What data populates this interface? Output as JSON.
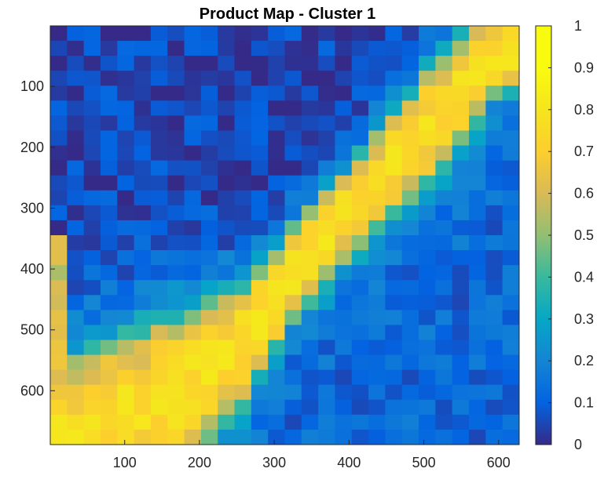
{
  "chart_data": {
    "type": "heatmap",
    "title": "Product Map - Cluster 1",
    "xlabel": "",
    "ylabel": "",
    "xlim": [
      0.5,
      627.5
    ],
    "ylim": [
      0.5,
      688.5
    ],
    "y_direction": "reversed",
    "x_ticks": [
      100,
      200,
      300,
      400,
      500,
      600
    ],
    "y_ticks": [
      100,
      200,
      300,
      400,
      500,
      600
    ],
    "colorbar": {
      "colormap": "parula",
      "range": [
        0,
        1
      ],
      "ticks": [
        0,
        0.1,
        0.2,
        0.3,
        0.4,
        0.5,
        0.6,
        0.7,
        0.8,
        0.9,
        1
      ],
      "tick_labels": [
        "0",
        "0.1",
        "0.2",
        "0.3",
        "0.4",
        "0.5",
        "0.6",
        "0.7",
        "0.8",
        "0.9",
        "1"
      ]
    },
    "grid": false,
    "field": {
      "grid_size": [
        28,
        28
      ],
      "background_level": 0.12,
      "band": {
        "description": "diagonal high-value band",
        "centerline": [
          [
            20,
            688
          ],
          [
            180,
            600
          ],
          [
            260,
            520
          ],
          [
            330,
            400
          ],
          [
            420,
            280
          ],
          [
            520,
            150
          ],
          [
            600,
            40
          ]
        ],
        "half_width": [
          [
            20,
            130
          ],
          [
            180,
            120
          ],
          [
            260,
            90
          ],
          [
            330,
            70
          ],
          [
            420,
            70
          ],
          [
            520,
            90
          ],
          [
            600,
            60
          ]
        ],
        "peak_level": 0.78
      },
      "secondary_region": {
        "description": "left edge medium values",
        "x_range": [
          0.5,
          12
        ],
        "y_range": [
          340,
          688
        ],
        "level": 0.6
      },
      "upper_left_level": 0.05,
      "lower_right_level": 0.12
    }
  }
}
